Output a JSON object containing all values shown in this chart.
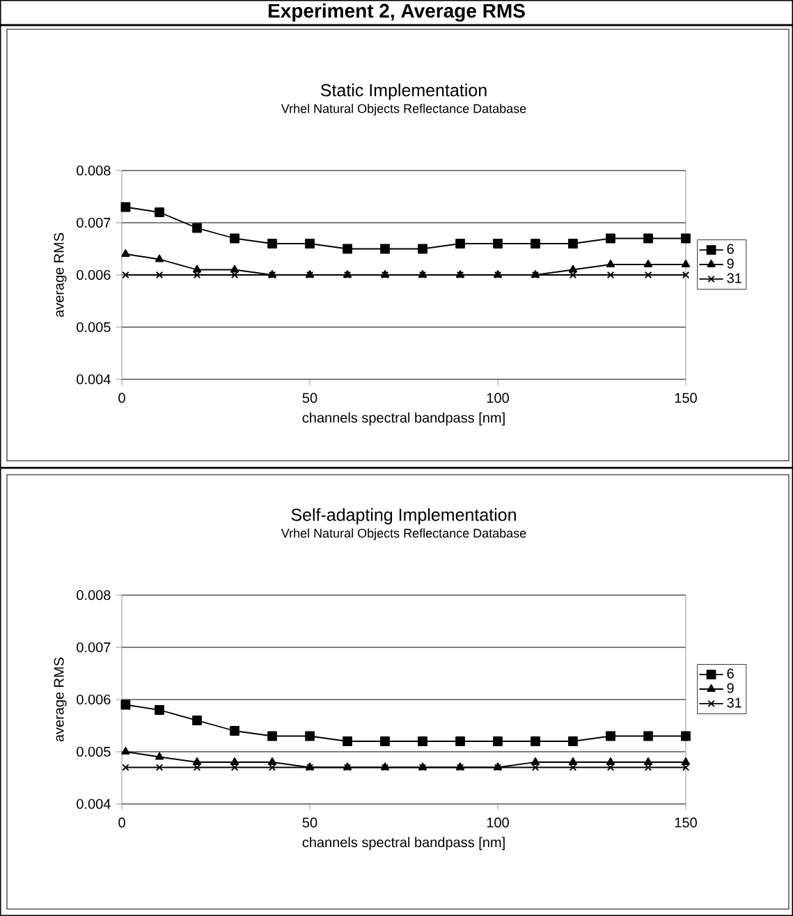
{
  "chart_data": [
    {
      "type": "line",
      "title": "Static Implementation",
      "subtitle": "Vrhel Natural Objects Reflectance Database",
      "xlabel": "channels spectral bandpass [nm]",
      "ylabel": "average RMS",
      "annotations": [
        "Experiment 2, Average RMS"
      ],
      "x": [
        1,
        10,
        20,
        30,
        40,
        50,
        60,
        70,
        80,
        90,
        100,
        110,
        120,
        130,
        140,
        150
      ],
      "xlim": [
        0,
        150
      ],
      "xticks": [
        0,
        50,
        100,
        150
      ],
      "ylim": [
        0.004,
        0.008
      ],
      "yticks": [
        0.004,
        0.005,
        0.006,
        0.007,
        0.008
      ],
      "grid": "y",
      "legend": "right",
      "line_style": "solid",
      "series": [
        {
          "name": "6",
          "color": "#000000",
          "marker": "square",
          "values": [
            0.0073,
            0.0072,
            0.0069,
            0.0067,
            0.0066,
            0.0066,
            0.0065,
            0.0065,
            0.0065,
            0.0066,
            0.0066,
            0.0066,
            0.0066,
            0.0067,
            0.0067,
            0.0067
          ]
        },
        {
          "name": "9",
          "color": "#000000",
          "marker": "triangle",
          "values": [
            0.0064,
            0.0063,
            0.0061,
            0.0061,
            0.006,
            0.006,
            0.006,
            0.006,
            0.006,
            0.006,
            0.006,
            0.006,
            0.0061,
            0.0062,
            0.0062,
            0.0062
          ]
        },
        {
          "name": "31",
          "color": "#000000",
          "marker": "cross",
          "values": [
            0.006,
            0.006,
            0.006,
            0.006,
            0.006,
            0.006,
            0.006,
            0.006,
            0.006,
            0.006,
            0.006,
            0.006,
            0.006,
            0.006,
            0.006,
            0.006
          ]
        }
      ]
    },
    {
      "type": "line",
      "title": "Self-adapting Implementation",
      "subtitle": "Vrhel Natural Objects Reflectance Database",
      "xlabel": "channels spectral bandpass [nm]",
      "ylabel": "average RMS",
      "x": [
        1,
        10,
        20,
        30,
        40,
        50,
        60,
        70,
        80,
        90,
        100,
        110,
        120,
        130,
        140,
        150
      ],
      "xlim": [
        0,
        150
      ],
      "xticks": [
        0,
        50,
        100,
        150
      ],
      "ylim": [
        0.004,
        0.008
      ],
      "yticks": [
        0.004,
        0.005,
        0.006,
        0.007,
        0.008
      ],
      "grid": "y",
      "legend": "right",
      "line_style": "solid",
      "series": [
        {
          "name": "6",
          "color": "#000000",
          "marker": "square",
          "values": [
            0.0059,
            0.0058,
            0.0056,
            0.0054,
            0.0053,
            0.0053,
            0.0052,
            0.0052,
            0.0052,
            0.0052,
            0.0052,
            0.0052,
            0.0052,
            0.0053,
            0.0053,
            0.0053
          ]
        },
        {
          "name": "9",
          "color": "#000000",
          "marker": "triangle",
          "values": [
            0.005,
            0.0049,
            0.0048,
            0.0048,
            0.0048,
            0.0047,
            0.0047,
            0.0047,
            0.0047,
            0.0047,
            0.0047,
            0.0048,
            0.0048,
            0.0048,
            0.0048,
            0.0048
          ]
        },
        {
          "name": "31",
          "color": "#000000",
          "marker": "cross",
          "values": [
            0.0047,
            0.0047,
            0.0047,
            0.0047,
            0.0047,
            0.0047,
            0.0047,
            0.0047,
            0.0047,
            0.0047,
            0.0047,
            0.0047,
            0.0047,
            0.0047,
            0.0047,
            0.0047
          ]
        }
      ]
    }
  ]
}
